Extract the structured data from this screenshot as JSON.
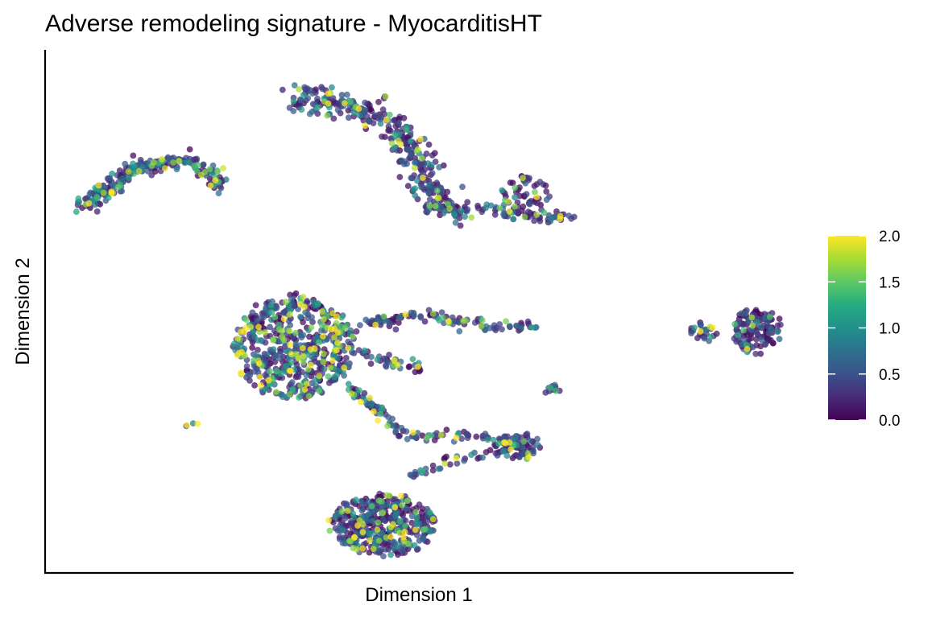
{
  "chart_data": {
    "type": "scatter",
    "title": "Adverse remodeling signature - MyocarditisHT",
    "xlabel": "Dimension 1",
    "ylabel": "Dimension 2",
    "xlim": [
      0,
      100
    ],
    "ylim": [
      0,
      100
    ],
    "axis_ticks_shown": false,
    "grid": false,
    "point_alpha": 0.75,
    "color_scale": {
      "name": "viridis",
      "range": [
        0.0,
        2.0
      ],
      "ticks": [
        "0.0",
        "0.5",
        "1.0",
        "1.5",
        "2.0"
      ],
      "tick_values": [
        0.0,
        0.5,
        1.0,
        1.5,
        2.0
      ],
      "colors": [
        "#440154",
        "#3b528b",
        "#21908c",
        "#5dc963",
        "#fde725"
      ]
    },
    "legend_position": "right",
    "clusters": [
      {
        "label": "",
        "shape": "arc",
        "points": [
          [
            5,
            70
          ],
          [
            11,
            77
          ],
          [
            19,
            79
          ],
          [
            24,
            74
          ]
        ],
        "count": 230,
        "spread": 1.5,
        "mean_score": 0.5
      },
      {
        "label": "",
        "shape": "path",
        "points": [
          [
            33,
            91
          ],
          [
            42,
            89
          ],
          [
            47,
            85
          ],
          [
            50,
            78
          ],
          [
            51,
            71
          ],
          [
            56,
            69
          ]
        ],
        "count": 360,
        "spread": 2.2,
        "mean_score": 0.4
      },
      {
        "label": "",
        "shape": "path",
        "points": [
          [
            58,
            70
          ],
          [
            64,
            68
          ],
          [
            70,
            68
          ]
        ],
        "count": 60,
        "spread": 1.0,
        "mean_score": 0.4
      },
      {
        "label": "",
        "shape": "blob",
        "center": [
          64,
          72
        ],
        "radius": [
          3.0,
          4.0
        ],
        "count": 60,
        "mean_score": 0.3
      },
      {
        "label": "",
        "shape": "blob",
        "center": [
          33,
          43
        ],
        "radius": [
          8.0,
          10.0
        ],
        "count": 560,
        "mean_score": 0.55
      },
      {
        "label": "",
        "shape": "path",
        "points": [
          [
            40,
            45
          ],
          [
            44,
            48
          ],
          [
            49,
            49
          ],
          [
            55,
            48
          ],
          [
            60,
            47
          ],
          [
            65,
            47
          ]
        ],
        "count": 110,
        "spread": 1.0,
        "mean_score": 0.45
      },
      {
        "label": "",
        "shape": "path",
        "points": [
          [
            42,
            42
          ],
          [
            46,
            40
          ],
          [
            50,
            39
          ]
        ],
        "count": 40,
        "spread": 1.0,
        "mean_score": 0.6
      },
      {
        "label": "",
        "shape": "path",
        "points": [
          [
            40,
            36
          ],
          [
            44,
            31
          ],
          [
            48,
            26
          ],
          [
            53,
            26
          ],
          [
            58,
            26
          ],
          [
            62,
            25
          ]
        ],
        "count": 100,
        "spread": 0.9,
        "mean_score": 0.6
      },
      {
        "label": "",
        "shape": "blob",
        "center": [
          63,
          24
        ],
        "radius": [
          3.0,
          2.5
        ],
        "count": 70,
        "mean_score": 0.45
      },
      {
        "label": "",
        "shape": "path",
        "points": [
          [
            49,
            18
          ],
          [
            52,
            20
          ],
          [
            56,
            22
          ],
          [
            60,
            23
          ],
          [
            63,
            24
          ]
        ],
        "count": 45,
        "spread": 0.8,
        "mean_score": 0.45
      },
      {
        "label": "",
        "shape": "blob",
        "center": [
          45,
          9
        ],
        "radius": [
          7.0,
          6.0
        ],
        "count": 420,
        "mean_score": 0.45
      },
      {
        "label": "",
        "shape": "blob",
        "center": [
          95,
          46
        ],
        "radius": [
          3.2,
          4.2
        ],
        "count": 130,
        "mean_score": 0.3
      },
      {
        "label": "",
        "shape": "blob",
        "center": [
          88,
          46
        ],
        "radius": [
          1.8,
          1.6
        ],
        "count": 25,
        "mean_score": 0.6
      },
      {
        "label": "",
        "shape": "blob",
        "center": [
          68,
          35
        ],
        "radius": [
          1.2,
          0.7
        ],
        "count": 14,
        "mean_score": 0.5
      },
      {
        "label": "",
        "shape": "blob",
        "center": [
          19,
          28
        ],
        "radius": [
          0.7,
          0.5
        ],
        "count": 4,
        "mean_score": 0.8
      }
    ]
  }
}
